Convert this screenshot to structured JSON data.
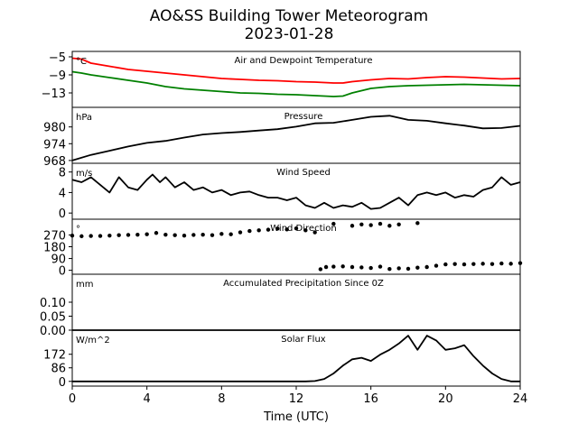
{
  "figure": {
    "title": "AO&SS Building Tower Meteorogram",
    "subtitle": "2023-01-28",
    "xlabel": "Time (UTC)",
    "xticks": [
      "0",
      "4",
      "8",
      "12",
      "16",
      "20",
      "24"
    ]
  },
  "chart_data": [
    {
      "type": "line",
      "title": "Air and Dewpoint Temperature",
      "unit": "°C",
      "xlim": [
        0,
        24
      ],
      "ylim": [
        -16.2,
        -3.8
      ],
      "yticks": [
        -5,
        -9,
        -13
      ],
      "ytick_labels": [
        "−5",
        "−9",
        "−13"
      ],
      "x": [
        0,
        0.5,
        1,
        2,
        3,
        4,
        5,
        6,
        7,
        8,
        9,
        10,
        11,
        12,
        13,
        14,
        14.5,
        15,
        16,
        17,
        18,
        19,
        20,
        21,
        22,
        23,
        24
      ],
      "series": [
        {
          "color": "#ff0000",
          "values": [
            -5.3,
            -5.5,
            -6.4,
            -7.1,
            -7.8,
            -8.2,
            -8.6,
            -9.0,
            -9.4,
            -9.8,
            -10.0,
            -10.2,
            -10.3,
            -10.5,
            -10.6,
            -10.8,
            -10.8,
            -10.5,
            -10.1,
            -9.8,
            -9.9,
            -9.6,
            -9.4,
            -9.5,
            -9.7,
            -9.9,
            -9.8
          ]
        },
        {
          "color": "#008000",
          "values": [
            -8.3,
            -8.6,
            -9.0,
            -9.6,
            -10.2,
            -10.8,
            -11.6,
            -12.1,
            -12.4,
            -12.7,
            -13.0,
            -13.1,
            -13.3,
            -13.4,
            -13.6,
            -13.8,
            -13.7,
            -13.0,
            -12.0,
            -11.6,
            -11.4,
            -11.3,
            -11.2,
            -11.1,
            -11.2,
            -11.3,
            -11.4
          ]
        }
      ]
    },
    {
      "type": "line",
      "title": "Pressure",
      "unit": "hPa",
      "xlim": [
        0,
        24
      ],
      "ylim": [
        967,
        987
      ],
      "yticks": [
        980,
        974,
        968
      ],
      "x": [
        0,
        1,
        2,
        3,
        4,
        5,
        6,
        7,
        8,
        9,
        10,
        11,
        12,
        13,
        14,
        15,
        16,
        17,
        18,
        19,
        20,
        21,
        22,
        23,
        24
      ],
      "series": [
        {
          "color": "#000000",
          "values": [
            968.0,
            970.0,
            971.5,
            973.0,
            974.3,
            975.0,
            976.2,
            977.3,
            977.8,
            978.2,
            978.7,
            979.2,
            980.1,
            981.3,
            981.5,
            982.5,
            983.6,
            984.0,
            982.5,
            982.2,
            981.3,
            980.5,
            979.5,
            979.6,
            980.4
          ]
        }
      ]
    },
    {
      "type": "line",
      "title": "Wind Speed",
      "unit": "m/s",
      "xlim": [
        0,
        24
      ],
      "ylim": [
        -1.2,
        9.7
      ],
      "yticks": [
        8,
        4,
        0
      ],
      "x": [
        0,
        0.5,
        1,
        1.5,
        2,
        2.5,
        3,
        3.5,
        4,
        4.3,
        4.7,
        5,
        5.5,
        6,
        6.5,
        7,
        7.5,
        8,
        8.5,
        9,
        9.5,
        10,
        10.5,
        11,
        11.5,
        12,
        12.5,
        13,
        13.5,
        14,
        14.5,
        15,
        15.5,
        16,
        16.5,
        17,
        17.5,
        18,
        18.5,
        19,
        19.5,
        20,
        20.5,
        21,
        21.5,
        22,
        22.5,
        23,
        23.5,
        24
      ],
      "series": [
        {
          "color": "#000000",
          "values": [
            6.5,
            6.0,
            7.0,
            5.5,
            4.0,
            7.0,
            5.0,
            4.5,
            6.5,
            7.5,
            6.0,
            7.0,
            5.0,
            6.0,
            4.5,
            5.0,
            4.0,
            4.5,
            3.5,
            4.0,
            4.2,
            3.5,
            3.0,
            3.0,
            2.5,
            3.0,
            1.5,
            1.0,
            2.0,
            1.0,
            1.5,
            1.2,
            2.0,
            0.8,
            1.0,
            2.0,
            3.0,
            1.5,
            3.5,
            4.0,
            3.5,
            4.0,
            3.0,
            3.5,
            3.2,
            4.5,
            5.0,
            7.0,
            5.5,
            6.0
          ]
        }
      ]
    },
    {
      "type": "scatter",
      "title": "Wind Direction",
      "unit": "°",
      "xlim": [
        0,
        24
      ],
      "ylim": [
        -30,
        390
      ],
      "yticks": [
        270,
        180,
        90,
        0
      ],
      "x": [
        0,
        0.5,
        1,
        1.5,
        2,
        2.5,
        3,
        3.5,
        4,
        4.5,
        5,
        5.5,
        6,
        6.5,
        7,
        7.5,
        8,
        8.5,
        9,
        9.5,
        10,
        10.5,
        11,
        11.5,
        12,
        12.5,
        13,
        13.3,
        13.6,
        14,
        14.5,
        15,
        15.5,
        16,
        16.5,
        17,
        17.5,
        18,
        18.5,
        19,
        19.5,
        20,
        20.5,
        21,
        21.5,
        22,
        22.5,
        23,
        23.5,
        24
      ],
      "series": [
        {
          "color": "#000000",
          "values": [
            265,
            260,
            262,
            262,
            265,
            268,
            270,
            272,
            275,
            285,
            272,
            268,
            265,
            270,
            272,
            268,
            278,
            275,
            290,
            300,
            305,
            310,
            318,
            312,
            320,
            305,
            290,
            8,
            25,
            28,
            30,
            25,
            22,
            18,
            28,
            10,
            15,
            12,
            20,
            25,
            35,
            45,
            48,
            45,
            48,
            50,
            48,
            52,
            50,
            55
          ]
        },
        {
          "color": "#000000",
          "values": [
            null,
            null,
            null,
            null,
            null,
            null,
            null,
            null,
            null,
            null,
            null,
            null,
            null,
            null,
            null,
            null,
            null,
            null,
            null,
            null,
            null,
            null,
            null,
            null,
            null,
            null,
            null,
            null,
            null,
            355,
            null,
            340,
            350,
            345,
            355,
            340,
            350,
            null,
            360,
            null,
            null,
            null,
            null,
            null,
            null,
            null,
            null,
            null,
            null,
            null
          ]
        }
      ]
    },
    {
      "type": "line",
      "title": "Accumulated Precipitation Since 0Z",
      "unit": "mm",
      "xlim": [
        0,
        24
      ],
      "ylim": [
        0,
        0.2
      ],
      "yticks": [
        0.1,
        0.05,
        0.0
      ],
      "ytick_labels": [
        "0.10",
        "0.05",
        "0.00"
      ],
      "x": [
        0,
        24
      ],
      "series": [
        {
          "color": "#000000",
          "values": [
            0,
            0
          ]
        }
      ]
    },
    {
      "type": "line",
      "title": "Solar Flux",
      "unit": "W/m^2",
      "xlim": [
        0,
        24
      ],
      "ylim": [
        -30,
        325
      ],
      "yticks": [
        172,
        86,
        0
      ],
      "x": [
        0,
        12.5,
        13,
        13.5,
        14,
        14.5,
        15,
        15.5,
        16,
        16.5,
        17,
        17.5,
        18,
        18.5,
        19,
        19.5,
        20,
        20.5,
        21,
        21.5,
        22,
        22.5,
        23,
        23.5,
        24
      ],
      "series": [
        {
          "color": "#000000",
          "values": [
            0,
            0,
            2,
            15,
            50,
            100,
            140,
            150,
            130,
            170,
            200,
            240,
            290,
            200,
            290,
            260,
            200,
            210,
            230,
            160,
            100,
            50,
            15,
            0,
            0
          ]
        }
      ]
    }
  ]
}
